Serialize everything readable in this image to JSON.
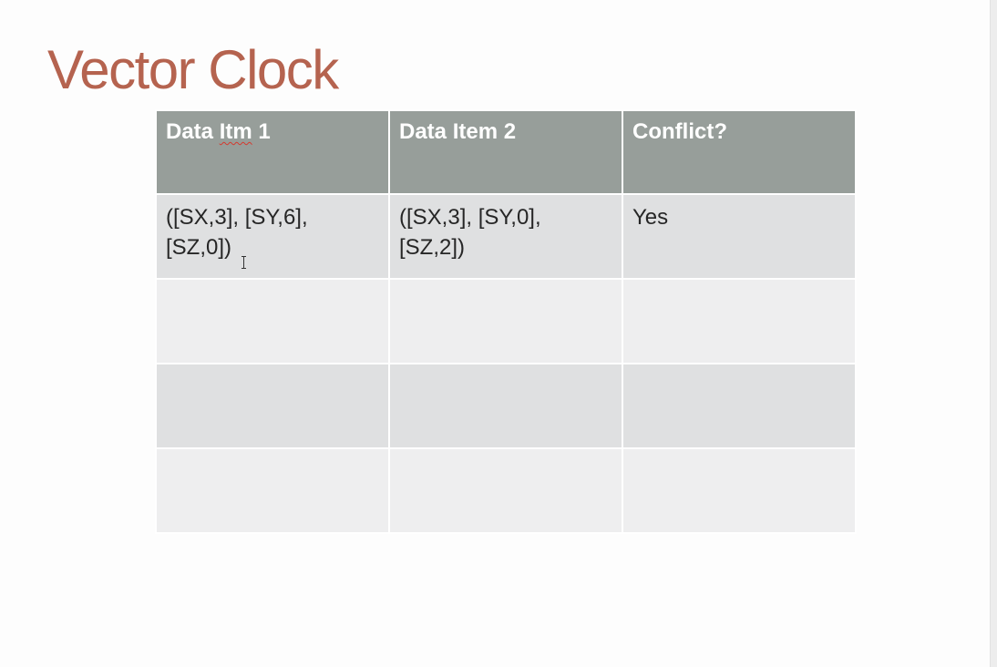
{
  "slide": {
    "title": "Vector Clock",
    "title_color": "#b5634f"
  },
  "table": {
    "header_color": "#979e9a",
    "headers": {
      "col1_prefix": "Data ",
      "col1_misspelled": "Itm",
      "col1_suffix": " 1",
      "col2": "Data Item 2",
      "col3": "Conflict?"
    },
    "rows": [
      {
        "item1_line1": "([SX,3], [SY,6],",
        "item1_line2": "[SZ,0])",
        "item2_line1": "([SX,3], [SY,0],",
        "item2_line2": "[SZ,2])",
        "conflict": "Yes"
      },
      {
        "item1_line1": "",
        "item1_line2": "",
        "item2_line1": "",
        "item2_line2": "",
        "conflict": ""
      },
      {
        "item1_line1": "",
        "item1_line2": "",
        "item2_line1": "",
        "item2_line2": "",
        "conflict": ""
      },
      {
        "item1_line1": "",
        "item1_line2": "",
        "item2_line1": "",
        "item2_line2": "",
        "conflict": ""
      }
    ]
  },
  "cursor": {
    "icon": "text-cursor-icon"
  }
}
